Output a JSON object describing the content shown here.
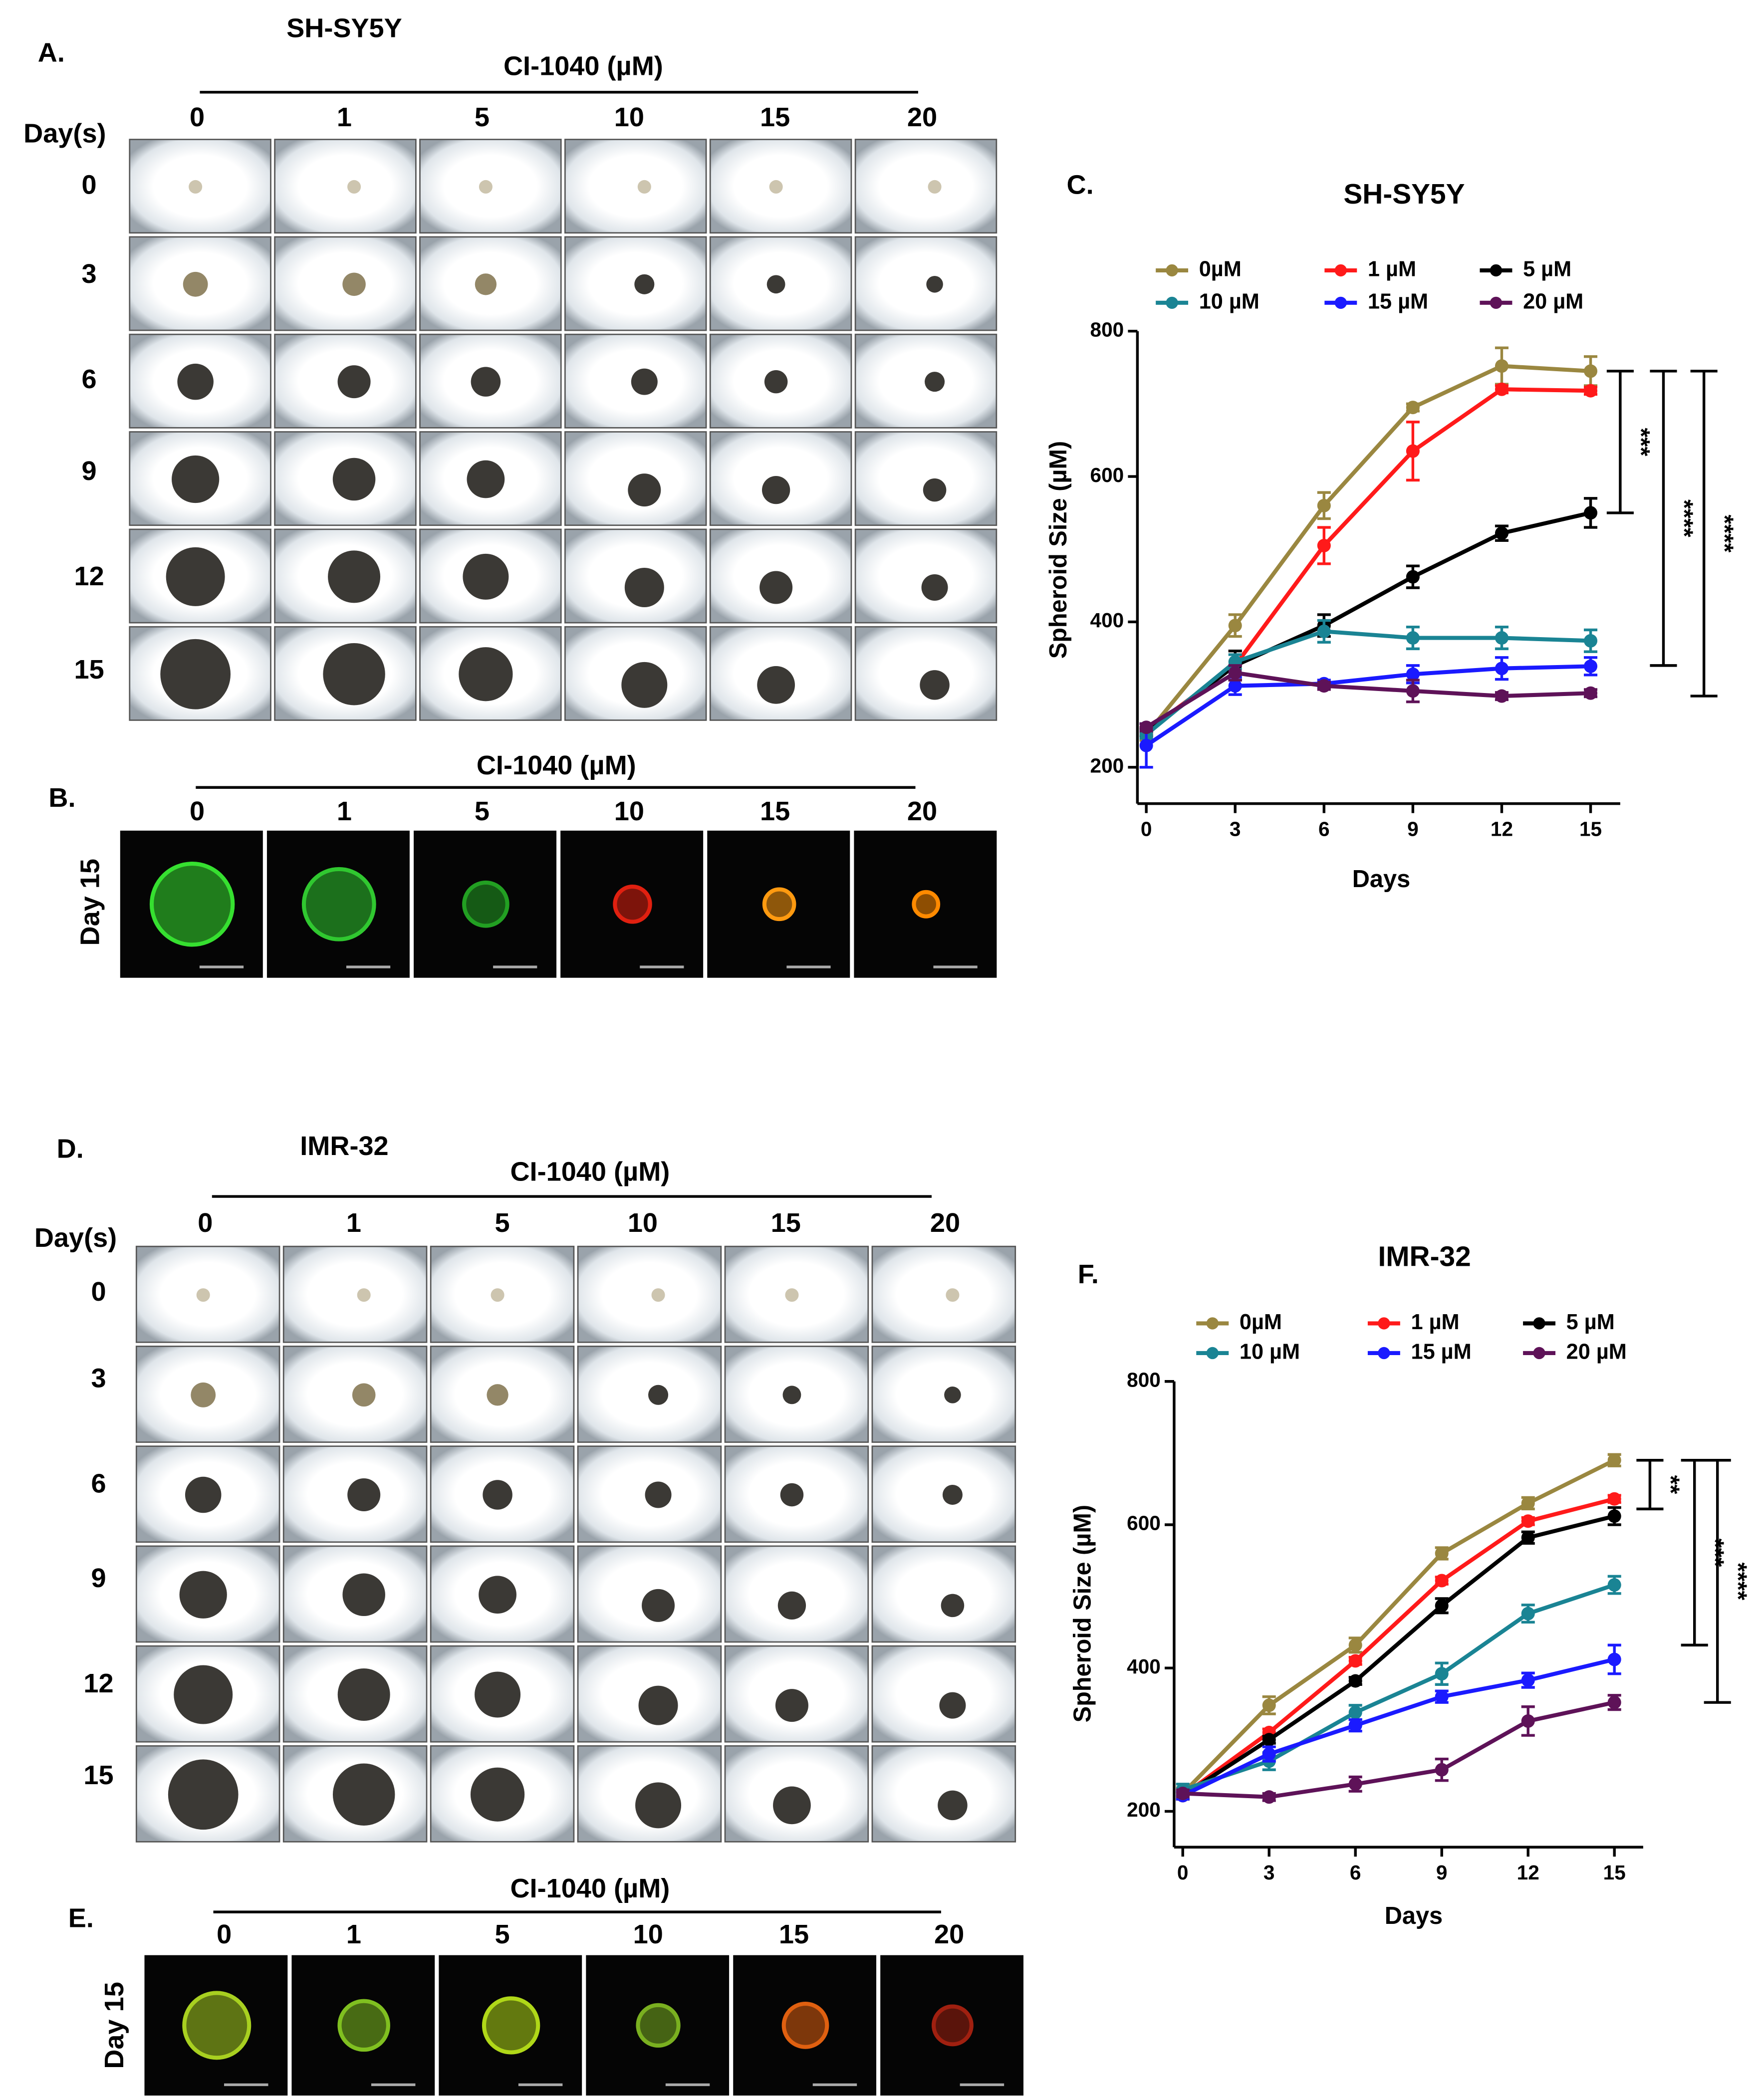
{
  "panels": [
    {
      "label": "A.",
      "cell_line": "SH-SY5Y",
      "drug": "CI-1040 (µM)",
      "concentrations": [
        "0",
        "1",
        "5",
        "10",
        "15",
        "20"
      ],
      "row_header": "Day(s)",
      "days": [
        "0",
        "3",
        "6",
        "9",
        "12",
        "15"
      ]
    },
    {
      "label": "B.",
      "drug": "CI-1040 (µM)",
      "concentrations": [
        "0",
        "1",
        "5",
        "10",
        "15",
        "20"
      ],
      "row_label": "Day 15"
    },
    {
      "label": "D.",
      "cell_line": "IMR-32",
      "drug": "CI-1040 (µM)",
      "concentrations": [
        "0",
        "1",
        "5",
        "10",
        "15",
        "20"
      ],
      "row_header": "Day(s)",
      "days": [
        "0",
        "3",
        "6",
        "9",
        "12",
        "15"
      ]
    },
    {
      "label": "E.",
      "drug": "CI-1040 (µM)",
      "concentrations": [
        "0",
        "1",
        "5",
        "10",
        "15",
        "20"
      ],
      "row_label": "Day 15"
    }
  ],
  "chart_data": [
    {
      "type": "line",
      "label": "C.",
      "title": "SH-SY5Y",
      "x_label": "Days",
      "y_label": "Spheroid Size (µM)",
      "x": [
        0,
        3,
        6,
        9,
        12,
        15
      ],
      "xlim": [
        -0.3,
        16
      ],
      "xticks": [
        0,
        3,
        6,
        9,
        12,
        15
      ],
      "ylim": [
        150,
        800
      ],
      "yticks": [
        200,
        400,
        600,
        800
      ],
      "legend": "top",
      "series": [
        {
          "name": "0µM",
          "color": "#9a8740",
          "values": [
            245,
            395,
            560,
            695,
            752,
            745
          ],
          "errors": [
            8,
            15,
            18,
            5,
            25,
            20
          ]
        },
        {
          "name": "1 µM",
          "color": "#ff1a1a",
          "values": [
            250,
            340,
            505,
            635,
            720,
            718
          ],
          "errors": [
            5,
            20,
            25,
            40,
            5,
            5
          ]
        },
        {
          "name": "5 µM",
          "color": "#000000",
          "values": [
            248,
            340,
            395,
            462,
            522,
            550
          ],
          "errors": [
            5,
            20,
            15,
            15,
            10,
            20
          ]
        },
        {
          "name": "10 µM",
          "color": "#1a8494",
          "values": [
            245,
            345,
            387,
            378,
            378,
            374
          ],
          "errors": [
            5,
            10,
            15,
            15,
            15,
            15
          ]
        },
        {
          "name": "15 µM",
          "color": "#1a1aff",
          "values": [
            230,
            312,
            315,
            328,
            336,
            339
          ],
          "errors": [
            30,
            12,
            5,
            12,
            15,
            12
          ]
        },
        {
          "name": "20 µM",
          "color": "#5e1258",
          "values": [
            255,
            330,
            312,
            305,
            298,
            302
          ],
          "errors": [
            5,
            10,
            5,
            15,
            5,
            5
          ]
        }
      ],
      "brackets": [
        {
          "label": "***",
          "values": [
            745,
            550
          ]
        },
        {
          "label": "****",
          "values": [
            745,
            340
          ]
        },
        {
          "label": "****",
          "values": [
            745,
            298
          ]
        }
      ]
    },
    {
      "type": "line",
      "label": "F.",
      "title": "IMR-32",
      "x_label": "Days",
      "y_label": "Spheroid Size (µM)",
      "x": [
        0,
        3,
        6,
        9,
        12,
        15
      ],
      "xlim": [
        -0.3,
        16
      ],
      "xticks": [
        0,
        3,
        6,
        9,
        12,
        15
      ],
      "ylim": [
        150,
        800
      ],
      "yticks": [
        200,
        400,
        600,
        800
      ],
      "legend": "top",
      "series": [
        {
          "name": "0µM",
          "color": "#9a8740",
          "values": [
            225,
            348,
            432,
            560,
            630,
            690
          ],
          "errors": [
            8,
            12,
            10,
            8,
            8,
            8
          ]
        },
        {
          "name": "1 µM",
          "color": "#ff1a1a",
          "values": [
            222,
            310,
            410,
            522,
            605,
            636
          ],
          "errors": [
            5,
            5,
            5,
            5,
            5,
            5
          ]
        },
        {
          "name": "5 µM",
          "color": "#000000",
          "values": [
            222,
            300,
            382,
            487,
            582,
            612
          ],
          "errors": [
            5,
            5,
            5,
            10,
            8,
            12
          ]
        },
        {
          "name": "10 µM",
          "color": "#1a8494",
          "values": [
            230,
            270,
            338,
            392,
            476,
            516
          ],
          "errors": [
            8,
            12,
            10,
            15,
            12,
            12
          ]
        },
        {
          "name": "15 µM",
          "color": "#1a1aff",
          "values": [
            222,
            280,
            320,
            360,
            383,
            412
          ],
          "errors": [
            5,
            10,
            8,
            8,
            10,
            20
          ]
        },
        {
          "name": "20 µM",
          "color": "#5e1258",
          "values": [
            225,
            220,
            238,
            258,
            326,
            352
          ],
          "errors": [
            5,
            5,
            10,
            15,
            20,
            10
          ]
        }
      ],
      "brackets": [
        {
          "label": "**",
          "values": [
            690,
            622
          ]
        },
        {
          "label": "***",
          "values": [
            690,
            432
          ]
        },
        {
          "label": "****",
          "values": [
            690,
            352
          ]
        }
      ]
    }
  ]
}
